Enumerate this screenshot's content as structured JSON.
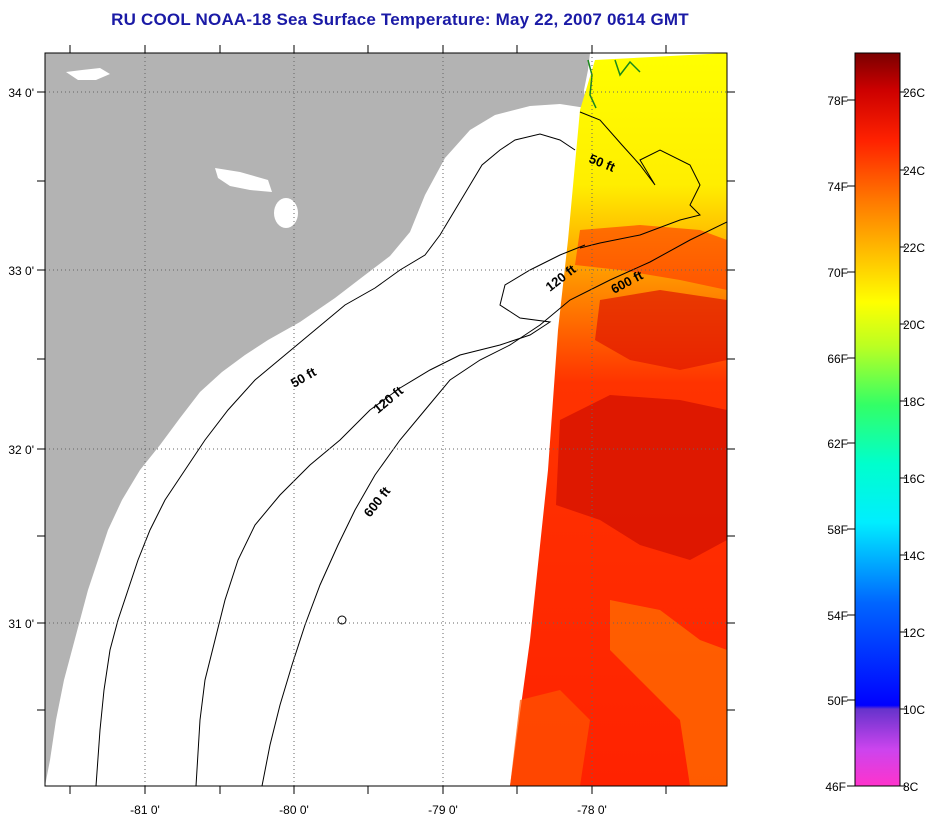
{
  "title": "RU COOL  NOAA-18  Sea Surface Temperature:  May 22, 2007 0614 GMT",
  "map": {
    "lon_ticks": [
      {
        "value": -81,
        "label": "-81 0'"
      },
      {
        "value": -80,
        "label": "-80 0'"
      },
      {
        "value": -79,
        "label": "-79 0'"
      },
      {
        "value": -78,
        "label": "-78 0'"
      }
    ],
    "lat_ticks": [
      {
        "value": 34,
        "label": "34 0'"
      },
      {
        "value": 33,
        "label": "33 0'"
      },
      {
        "value": 32,
        "label": "32 0'"
      },
      {
        "value": 31,
        "label": "31 0'"
      }
    ],
    "contours": [
      {
        "label": "50 ft"
      },
      {
        "label": "50 ft"
      },
      {
        "label": "120 ft"
      },
      {
        "label": "120 ft"
      },
      {
        "label": "600 ft"
      },
      {
        "label": "600 ft"
      }
    ],
    "colors": {
      "land": "#b3b3b3",
      "ocean": "#ffffff",
      "sst_dominant": "#ee2a00"
    }
  },
  "colorbar": {
    "fahrenheit_labels": [
      "78F",
      "74F",
      "70F",
      "66F",
      "62F",
      "58F",
      "54F",
      "50F",
      "46F"
    ],
    "celsius_labels": [
      "26C",
      "24C",
      "22C",
      "20C",
      "18C",
      "16C",
      "14C",
      "12C",
      "10C",
      "8C"
    ],
    "range_c": [
      8,
      27
    ]
  }
}
